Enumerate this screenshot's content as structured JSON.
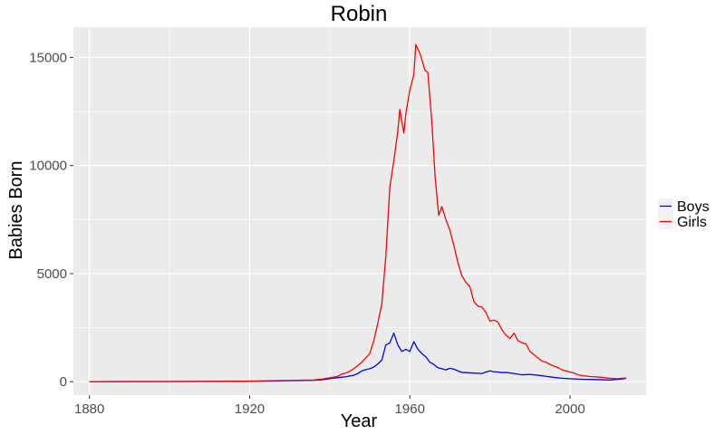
{
  "chart_data": {
    "type": "line",
    "title": "Robin",
    "xlabel": "Year",
    "ylabel": "Babies Born",
    "xlim": [
      1876,
      2019
    ],
    "ylim": [
      -620,
      16400
    ],
    "x_ticks": [
      1880,
      1920,
      1960,
      2000
    ],
    "y_ticks": [
      0,
      5000,
      10000,
      15000
    ],
    "grid": true,
    "panel_background": "#ebebeb",
    "grid_color": "#ffffff",
    "legend": {
      "position": "right"
    },
    "series": [
      {
        "name": "Boys",
        "color": "#0000ff",
        "points": [
          [
            1880,
            5
          ],
          [
            1890,
            8
          ],
          [
            1900,
            10
          ],
          [
            1910,
            12
          ],
          [
            1920,
            20
          ],
          [
            1930,
            45
          ],
          [
            1936,
            60
          ],
          [
            1938,
            90
          ],
          [
            1940,
            140
          ],
          [
            1942,
            190
          ],
          [
            1944,
            230
          ],
          [
            1946,
            300
          ],
          [
            1947,
            380
          ],
          [
            1948,
            500
          ],
          [
            1949,
            560
          ],
          [
            1950,
            600
          ],
          [
            1951,
            680
          ],
          [
            1952,
            820
          ],
          [
            1953,
            1000
          ],
          [
            1954,
            1700
          ],
          [
            1955,
            1800
          ],
          [
            1956,
            2250
          ],
          [
            1957,
            1700
          ],
          [
            1958,
            1400
          ],
          [
            1959,
            1500
          ],
          [
            1960,
            1400
          ],
          [
            1961,
            1850
          ],
          [
            1962,
            1500
          ],
          [
            1963,
            1300
          ],
          [
            1964,
            1150
          ],
          [
            1965,
            900
          ],
          [
            1966,
            800
          ],
          [
            1967,
            650
          ],
          [
            1968,
            600
          ],
          [
            1969,
            550
          ],
          [
            1970,
            620
          ],
          [
            1971,
            580
          ],
          [
            1972,
            500
          ],
          [
            1973,
            430
          ],
          [
            1974,
            420
          ],
          [
            1976,
            400
          ],
          [
            1978,
            380
          ],
          [
            1979,
            450
          ],
          [
            1980,
            500
          ],
          [
            1981,
            460
          ],
          [
            1982,
            450
          ],
          [
            1983,
            420
          ],
          [
            1984,
            430
          ],
          [
            1986,
            380
          ],
          [
            1988,
            320
          ],
          [
            1990,
            340
          ],
          [
            1992,
            300
          ],
          [
            1994,
            250
          ],
          [
            1996,
            200
          ],
          [
            1998,
            160
          ],
          [
            2000,
            140
          ],
          [
            2002,
            120
          ],
          [
            2004,
            110
          ],
          [
            2006,
            100
          ],
          [
            2008,
            90
          ],
          [
            2010,
            80
          ],
          [
            2012,
            110
          ],
          [
            2014,
            150
          ]
        ]
      },
      {
        "name": "Girls",
        "color": "#ff0000",
        "points": [
          [
            1880,
            3
          ],
          [
            1890,
            6
          ],
          [
            1900,
            8
          ],
          [
            1910,
            15
          ],
          [
            1920,
            30
          ],
          [
            1930,
            60
          ],
          [
            1936,
            80
          ],
          [
            1938,
            120
          ],
          [
            1940,
            180
          ],
          [
            1942,
            250
          ],
          [
            1943,
            350
          ],
          [
            1944,
            400
          ],
          [
            1945,
            480
          ],
          [
            1946,
            600
          ],
          [
            1947,
            750
          ],
          [
            1948,
            900
          ],
          [
            1949,
            1100
          ],
          [
            1950,
            1300
          ],
          [
            1951,
            1900
          ],
          [
            1952,
            2700
          ],
          [
            1953,
            3600
          ],
          [
            1954,
            5800
          ],
          [
            1955,
            9000
          ],
          [
            1956,
            10200
          ],
          [
            1957,
            11600
          ],
          [
            1957.5,
            12600
          ],
          [
            1958.5,
            11500
          ],
          [
            1959,
            12400
          ],
          [
            1960,
            13500
          ],
          [
            1961,
            14200
          ],
          [
            1961.5,
            15600
          ],
          [
            1962.5,
            15200
          ],
          [
            1963,
            14900
          ],
          [
            1963.8,
            14400
          ],
          [
            1964.5,
            14300
          ],
          [
            1965.5,
            12000
          ],
          [
            1966.3,
            9500
          ],
          [
            1967.2,
            7700
          ],
          [
            1968,
            8100
          ],
          [
            1969,
            7500
          ],
          [
            1970,
            7000
          ],
          [
            1971,
            6300
          ],
          [
            1972,
            5500
          ],
          [
            1973,
            4900
          ],
          [
            1974,
            4600
          ],
          [
            1975,
            4400
          ],
          [
            1976,
            3700
          ],
          [
            1977,
            3500
          ],
          [
            1978,
            3450
          ],
          [
            1979,
            3200
          ],
          [
            1980,
            2800
          ],
          [
            1981,
            2850
          ],
          [
            1982,
            2750
          ],
          [
            1983,
            2400
          ],
          [
            1984,
            2150
          ],
          [
            1985,
            2000
          ],
          [
            1986,
            2250
          ],
          [
            1987,
            1900
          ],
          [
            1988,
            1800
          ],
          [
            1989,
            1750
          ],
          [
            1990,
            1400
          ],
          [
            1991,
            1250
          ],
          [
            1992,
            1100
          ],
          [
            1993,
            950
          ],
          [
            1994,
            900
          ],
          [
            1995,
            800
          ],
          [
            1996,
            720
          ],
          [
            1997,
            650
          ],
          [
            1998,
            550
          ],
          [
            1999,
            500
          ],
          [
            2000,
            450
          ],
          [
            2001,
            400
          ],
          [
            2002,
            320
          ],
          [
            2003,
            280
          ],
          [
            2004,
            260
          ],
          [
            2005,
            240
          ],
          [
            2006,
            230
          ],
          [
            2007,
            220
          ],
          [
            2008,
            200
          ],
          [
            2009,
            180
          ],
          [
            2010,
            160
          ],
          [
            2011,
            150
          ],
          [
            2012,
            140
          ],
          [
            2013,
            160
          ],
          [
            2014,
            170
          ]
        ]
      }
    ]
  }
}
